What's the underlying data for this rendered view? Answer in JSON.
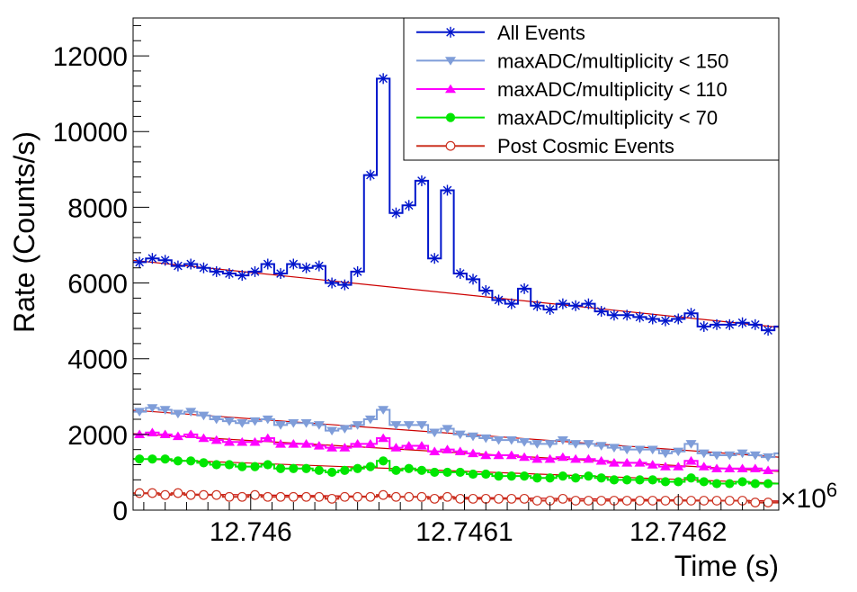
{
  "chart_data": {
    "type": "line",
    "style": "step-histogram",
    "title": "",
    "xlabel": "Time (s)",
    "ylabel": "Rate (Counts/s)",
    "x_exponent_label": "×10",
    "x_exponent_power": "6",
    "xlim": [
      12.745945,
      12.746247
    ],
    "ylim": [
      0,
      13000
    ],
    "bin_start": 12.745945,
    "bin_width": 6e-06,
    "x_ticks": [
      12.746,
      12.7461,
      12.7462
    ],
    "x_tick_labels": [
      "12.746",
      "12.7461",
      "12.7462"
    ],
    "y_ticks": [
      0,
      2000,
      4000,
      6000,
      8000,
      10000,
      12000
    ],
    "y_tick_labels": [
      "0",
      "2000",
      "4000",
      "6000",
      "8000",
      "10000",
      "12000"
    ],
    "grid": false,
    "legend_position": "top-right",
    "series": [
      {
        "name": "All Events",
        "color": "#0015cc",
        "marker": "star",
        "values": [
          6550,
          6650,
          6600,
          6450,
          6500,
          6400,
          6300,
          6250,
          6200,
          6300,
          6500,
          6250,
          6500,
          6400,
          6450,
          6000,
          5950,
          6300,
          8850,
          11400,
          7850,
          8050,
          8700,
          6650,
          8450,
          6250,
          6100,
          5800,
          5550,
          5450,
          5850,
          5400,
          5300,
          5450,
          5400,
          5450,
          5250,
          5150,
          5150,
          5100,
          5050,
          5000,
          5050,
          5200,
          4850,
          4900,
          4900,
          4950,
          4900,
          4750,
          4850
        ]
      },
      {
        "name": "maxADC/multiplicity < 150",
        "color": "#7f9dd9",
        "marker": "triangle-down",
        "values": [
          2600,
          2700,
          2650,
          2550,
          2600,
          2500,
          2400,
          2350,
          2300,
          2350,
          2400,
          2250,
          2300,
          2300,
          2250,
          2100,
          2150,
          2250,
          2400,
          2650,
          2250,
          2250,
          2250,
          2050,
          2150,
          2000,
          1950,
          1900,
          1850,
          1850,
          1800,
          1750,
          1750,
          1850,
          1750,
          1750,
          1700,
          1650,
          1600,
          1600,
          1600,
          1500,
          1550,
          1750,
          1500,
          1450,
          1450,
          1500,
          1450,
          1400,
          1500
        ]
      },
      {
        "name": "maxADC/multiplicity < 110",
        "color": "#ff00ff",
        "marker": "triangle-up",
        "values": [
          2000,
          2050,
          2000,
          1950,
          2000,
          1900,
          1850,
          1800,
          1800,
          1800,
          1900,
          1750,
          1750,
          1750,
          1700,
          1650,
          1650,
          1750,
          1750,
          1900,
          1650,
          1700,
          1700,
          1550,
          1600,
          1550,
          1500,
          1450,
          1450,
          1450,
          1400,
          1350,
          1350,
          1400,
          1350,
          1350,
          1300,
          1250,
          1250,
          1250,
          1200,
          1150,
          1150,
          1300,
          1150,
          1100,
          1100,
          1100,
          1100,
          1050,
          1050
        ]
      },
      {
        "name": "maxADC/multiplicity < 70",
        "color": "#00e600",
        "marker": "circle-filled",
        "values": [
          1350,
          1350,
          1350,
          1300,
          1300,
          1250,
          1200,
          1200,
          1150,
          1150,
          1200,
          1100,
          1100,
          1100,
          1050,
          1000,
          1050,
          1100,
          1150,
          1300,
          1050,
          1100,
          1050,
          1000,
          1000,
          1000,
          950,
          950,
          900,
          900,
          900,
          850,
          850,
          900,
          850,
          900,
          850,
          800,
          800,
          800,
          800,
          750,
          750,
          850,
          750,
          700,
          700,
          750,
          700,
          700,
          700
        ]
      },
      {
        "name": "Post Cosmic Events",
        "color": "#cc3322",
        "marker": "circle-open",
        "values": [
          450,
          450,
          400,
          450,
          400,
          400,
          400,
          350,
          350,
          400,
          350,
          350,
          350,
          350,
          350,
          300,
          350,
          350,
          350,
          400,
          350,
          350,
          350,
          300,
          350,
          300,
          300,
          300,
          300,
          300,
          300,
          250,
          250,
          300,
          250,
          250,
          250,
          250,
          250,
          250,
          250,
          250,
          250,
          250,
          250,
          250,
          250,
          250,
          200,
          200,
          200
        ]
      }
    ],
    "fits": [
      {
        "color": "#cc0000",
        "x": [
          12.745945,
          12.746247
        ],
        "y": [
          6600,
          4830
        ]
      },
      {
        "color": "#cc0000",
        "x": [
          12.745945,
          12.746247
        ],
        "y": [
          2640,
          1400
        ]
      },
      {
        "color": "#cc0000",
        "x": [
          12.745945,
          12.746247
        ],
        "y": [
          2020,
          1020
        ]
      },
      {
        "color": "#cc0000",
        "x": [
          12.745945,
          12.746247
        ],
        "y": [
          1360,
          710
        ]
      },
      {
        "color": "#cc0000",
        "x": [
          12.745945,
          12.746247
        ],
        "y": [
          440,
          240
        ]
      }
    ]
  }
}
